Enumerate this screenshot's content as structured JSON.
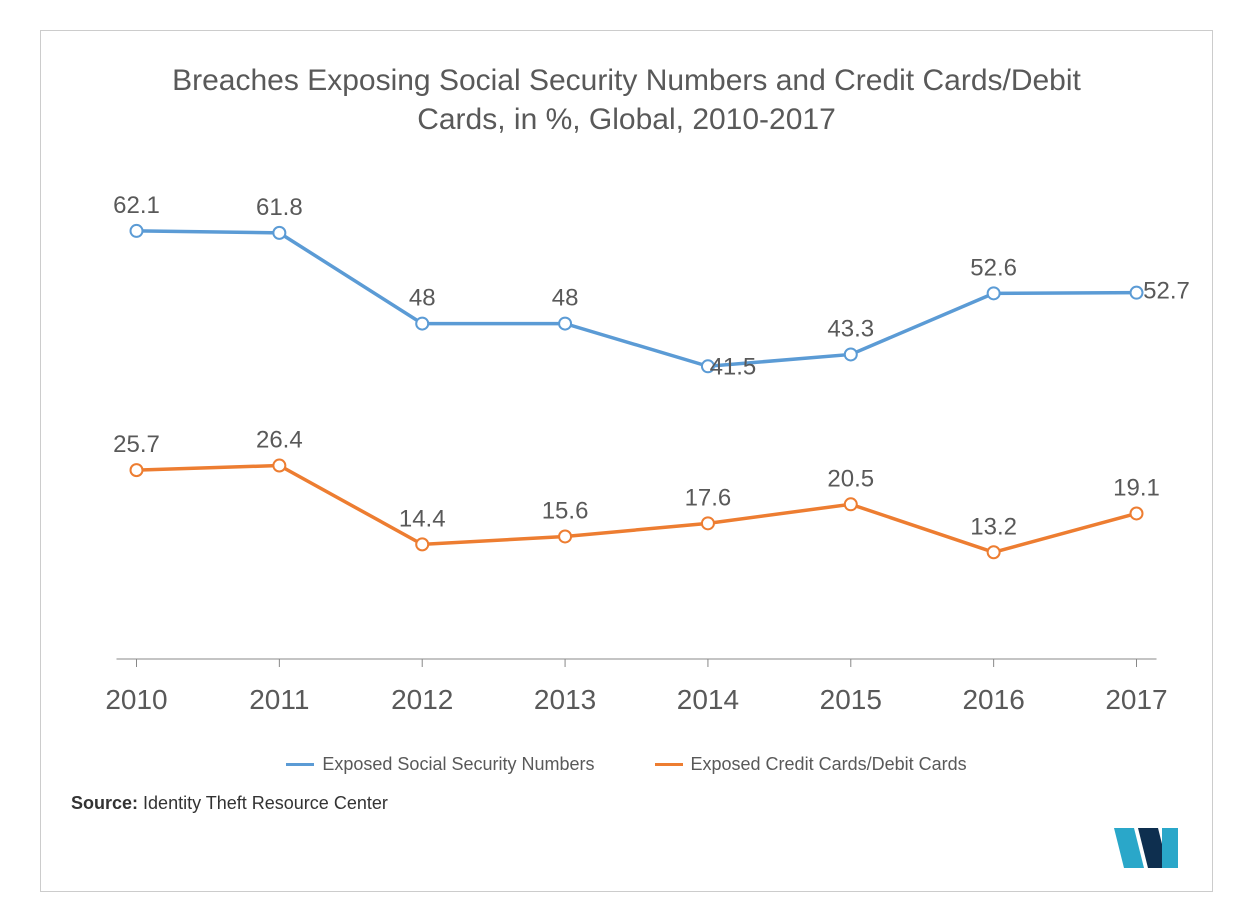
{
  "chart": {
    "type": "line",
    "title": "Breaches Exposing Social Security Numbers and Credit Cards/Debit Cards, in %, Global, 2010-2017",
    "title_fontsize": 30,
    "title_color": "#595959",
    "categories": [
      "2010",
      "2011",
      "2012",
      "2013",
      "2014",
      "2015",
      "2016",
      "2017"
    ],
    "series": [
      {
        "name": "Exposed Social Security Numbers",
        "color": "#5b9bd5",
        "values": [
          62.1,
          61.8,
          48,
          48,
          41.5,
          43.3,
          52.6,
          52.7
        ],
        "labels": [
          "62.1",
          "61.8",
          "48",
          "48",
          "41.5",
          "43.3",
          "52.6",
          "52.7"
        ]
      },
      {
        "name": "Exposed Credit Cards/Debit Cards",
        "color": "#ed7d31",
        "values": [
          25.7,
          26.4,
          14.4,
          15.6,
          17.6,
          20.5,
          13.2,
          19.1
        ],
        "labels": [
          "25.7",
          "26.4",
          "14.4",
          "15.6",
          "17.6",
          "20.5",
          "13.2",
          "19.1"
        ]
      }
    ],
    "ylim": [
      0,
      70
    ],
    "line_width": 3.5,
    "marker_size": 6,
    "background_color": "#ffffff",
    "axis_color": "#888888",
    "x_label_fontsize": 28,
    "data_label_fontsize": 24,
    "label_color": "#595959",
    "source_label": "Source:",
    "source_text": "Identity Theft Resource Center",
    "legend_fontsize": 18,
    "logo_primary": "#2aa7c9",
    "logo_dark": "#0e2f4f"
  }
}
